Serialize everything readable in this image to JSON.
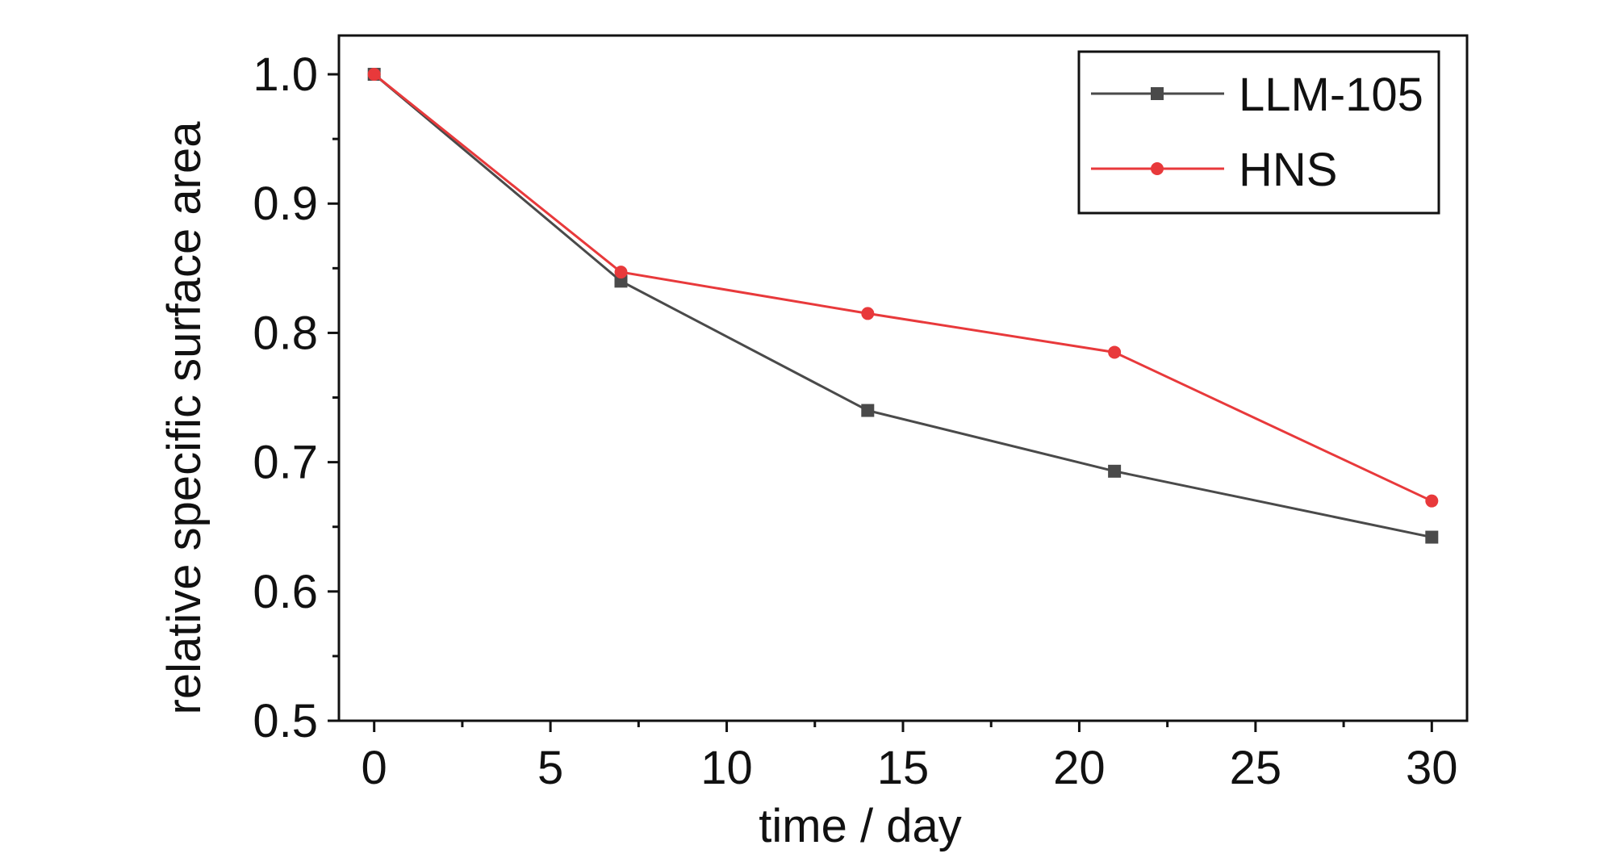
{
  "chart_data": {
    "type": "line",
    "xlabel": "time / day",
    "ylabel": "relative specific surface area",
    "xlim": [
      -1,
      31
    ],
    "ylim": [
      0.5,
      1.03
    ],
    "x_ticks": [
      0,
      5,
      10,
      15,
      20,
      25,
      30
    ],
    "x_tick_labels": [
      "0",
      "5",
      "10",
      "15",
      "20",
      "25",
      "30"
    ],
    "y_ticks": [
      0.5,
      0.6,
      0.7,
      0.8,
      0.9,
      1.0
    ],
    "y_tick_labels": [
      "0.5",
      "0.6",
      "0.7",
      "0.8",
      "0.9",
      "1.0"
    ],
    "x": [
      0,
      7,
      14,
      21,
      30
    ],
    "series": [
      {
        "name": "LLM-105",
        "marker": "square",
        "color": "#4a4a4a",
        "values": [
          1.0,
          0.84,
          0.74,
          0.693,
          0.642
        ]
      },
      {
        "name": "HNS",
        "marker": "circle",
        "color": "#e8393b",
        "values": [
          1.0,
          0.847,
          0.815,
          0.785,
          0.67
        ]
      }
    ],
    "grid": false,
    "legend_position": "top-right"
  }
}
